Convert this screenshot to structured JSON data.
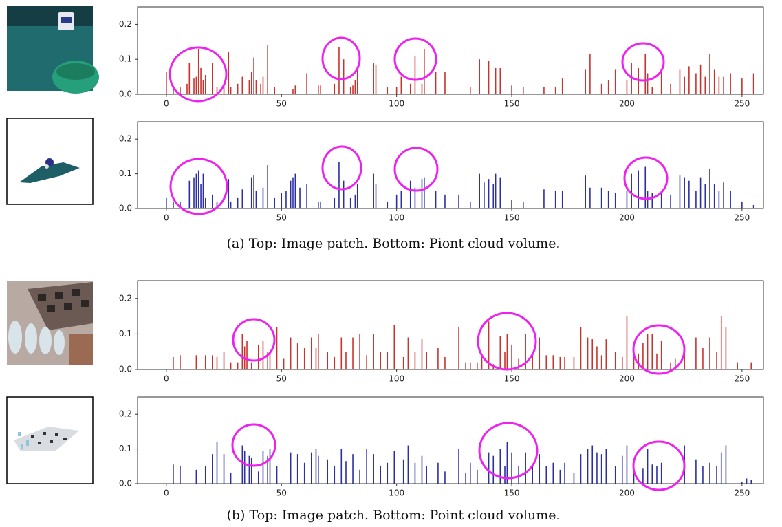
{
  "chart_data": [
    {
      "type": "bar",
      "color": "#c8332e",
      "xlim": [
        -12.5,
        259.3
      ],
      "ylim": [
        0,
        0.25
      ],
      "xticks": [
        0,
        50,
        100,
        150,
        200,
        250
      ],
      "yticks": [
        {
          "value": 0,
          "label": "0.0"
        },
        0.1,
        0.2
      ],
      "x": [
        0,
        3,
        6,
        9,
        10,
        12,
        13,
        14,
        15,
        16,
        17,
        20,
        22,
        25,
        27,
        28,
        31,
        33,
        36,
        37,
        38,
        39,
        41,
        42,
        44,
        47,
        55,
        56,
        61,
        66,
        67,
        73,
        75,
        77,
        80,
        81,
        82,
        83,
        90,
        91,
        96,
        100,
        102,
        106,
        108,
        111,
        112,
        117,
        121,
        132,
        136,
        140,
        143,
        145,
        150,
        155,
        164,
        169,
        172,
        182,
        184,
        189,
        192,
        195,
        200,
        202,
        205,
        208,
        209,
        211,
        215,
        219,
        223,
        225,
        227,
        230,
        232,
        234,
        236,
        238,
        240,
        242,
        245,
        250,
        255
      ],
      "values": [
        0.065,
        0.02,
        0.02,
        0.03,
        0.09,
        0.045,
        0.05,
        0.13,
        0.075,
        0.04,
        0.055,
        0.09,
        0.02,
        0.02,
        0.12,
        0.02,
        0.03,
        0.05,
        0.04,
        0.065,
        0.105,
        0.04,
        0.03,
        0.05,
        0.14,
        0.02,
        0.015,
        0.025,
        0.06,
        0.025,
        0.025,
        0.03,
        0.135,
        0.1,
        0.02,
        0.025,
        0.04,
        0.08,
        0.09,
        0.085,
        0.02,
        0.02,
        0.05,
        0.03,
        0.11,
        0.03,
        0.13,
        0.065,
        0.065,
        0.02,
        0.1,
        0.095,
        0.075,
        0.075,
        0.025,
        0.02,
        0.02,
        0.02,
        0.045,
        0.07,
        0.115,
        0.03,
        0.04,
        0.07,
        0.04,
        0.09,
        0.075,
        0.115,
        0.06,
        0.02,
        0.065,
        0.03,
        0.07,
        0.05,
        0.08,
        0.06,
        0.085,
        0.05,
        0.115,
        0.07,
        0.05,
        0.05,
        0.06,
        0.045,
        0.06
      ]
    },
    {
      "type": "bar",
      "color": "#2b2fa3",
      "xlim": [
        -12.5,
        259.3
      ],
      "ylim": [
        0,
        0.25
      ],
      "xticks": [
        0,
        50,
        100,
        150,
        200,
        250
      ],
      "yticks": [
        {
          "value": 0,
          "label": "0.0"
        },
        0.1,
        0.2
      ],
      "x": [
        0,
        3,
        6,
        10,
        12,
        13,
        14,
        15,
        16,
        17,
        20,
        22,
        27,
        28,
        31,
        33,
        37,
        38,
        39,
        42,
        44,
        47,
        50,
        52,
        54,
        55,
        56,
        58,
        61,
        66,
        67,
        73,
        75,
        77,
        80,
        82,
        83,
        90,
        91,
        96,
        100,
        102,
        106,
        108,
        111,
        112,
        117,
        121,
        127,
        132,
        136,
        138,
        140,
        142,
        143,
        145,
        150,
        155,
        164,
        169,
        172,
        182,
        184,
        189,
        192,
        195,
        200,
        202,
        205,
        208,
        209,
        211,
        215,
        219,
        223,
        225,
        227,
        230,
        232,
        234,
        236,
        238,
        240,
        242,
        245,
        250,
        255
      ],
      "values": [
        0.03,
        0.02,
        0.02,
        0.08,
        0.09,
        0.1,
        0.11,
        0.07,
        0.1,
        0.03,
        0.04,
        0.02,
        0.085,
        0.02,
        0.03,
        0.055,
        0.09,
        0.095,
        0.05,
        0.06,
        0.125,
        0.03,
        0.045,
        0.05,
        0.08,
        0.09,
        0.1,
        0.06,
        0.07,
        0.02,
        0.02,
        0.03,
        0.135,
        0.08,
        0.03,
        0.04,
        0.07,
        0.1,
        0.07,
        0.02,
        0.04,
        0.05,
        0.08,
        0.06,
        0.085,
        0.09,
        0.05,
        0.04,
        0.04,
        0.02,
        0.1,
        0.075,
        0.085,
        0.07,
        0.1,
        0.09,
        0.025,
        0.02,
        0.055,
        0.05,
        0.05,
        0.095,
        0.06,
        0.06,
        0.05,
        0.045,
        0.05,
        0.1,
        0.11,
        0.12,
        0.05,
        0.045,
        0.045,
        0.04,
        0.095,
        0.09,
        0.08,
        0.05,
        0.09,
        0.07,
        0.115,
        0.07,
        0.05,
        0.075,
        0.05,
        0.02,
        0.01
      ]
    },
    {
      "type": "bar",
      "color": "#c8332e",
      "xlim": [
        -12.5,
        259.3
      ],
      "ylim": [
        0,
        0.25
      ],
      "xticks": [
        0,
        50,
        100,
        150,
        200,
        250
      ],
      "yticks": [
        {
          "value": 0,
          "label": "0.0"
        },
        0.1,
        0.2
      ],
      "x": [
        3,
        6,
        13,
        17,
        20,
        22,
        25,
        28,
        31,
        33,
        34,
        35,
        37,
        40,
        42,
        44,
        45,
        48,
        51,
        54,
        57,
        60,
        63,
        65,
        66,
        70,
        73,
        76,
        78,
        81,
        84,
        87,
        90,
        93,
        96,
        99,
        103,
        105,
        108,
        111,
        113,
        118,
        121,
        127,
        130,
        132,
        135,
        137,
        140,
        142,
        145,
        147,
        148,
        150,
        153,
        156,
        159,
        162,
        165,
        168,
        171,
        173,
        177,
        180,
        183,
        185,
        187,
        189,
        191,
        195,
        198,
        200,
        203,
        205,
        207,
        209,
        211,
        213,
        215,
        219,
        221,
        225,
        230,
        233,
        236,
        239,
        241,
        243,
        248,
        254
      ],
      "values": [
        0.035,
        0.04,
        0.04,
        0.04,
        0.04,
        0.035,
        0.05,
        0.02,
        0.02,
        0.1,
        0.065,
        0.08,
        0.02,
        0.07,
        0.08,
        0.05,
        0.05,
        0.12,
        0.03,
        0.09,
        0.075,
        0.06,
        0.09,
        0.06,
        0.1,
        0.05,
        0.035,
        0.09,
        0.05,
        0.09,
        0.1,
        0.04,
        0.1,
        0.05,
        0.05,
        0.125,
        0.035,
        0.09,
        0.05,
        0.085,
        0.05,
        0.06,
        0.035,
        0.12,
        0.02,
        0.02,
        0.02,
        0.035,
        0.135,
        0.015,
        0.095,
        0.05,
        0.1,
        0.07,
        0.03,
        0.1,
        0.04,
        0.09,
        0.04,
        0.04,
        0.035,
        0.035,
        0.035,
        0.12,
        0.09,
        0.085,
        0.065,
        0.04,
        0.085,
        0.05,
        0.035,
        0.15,
        0.045,
        0.045,
        0.075,
        0.1,
        0.1,
        0.045,
        0.08,
        0.02,
        0.03,
        0.06,
        0.09,
        0.06,
        0.09,
        0.05,
        0.15,
        0.12,
        0.02,
        0.02
      ]
    },
    {
      "type": "bar",
      "color": "#2b2fa3",
      "xlim": [
        -12.5,
        259.3
      ],
      "ylim": [
        0,
        0.25
      ],
      "xticks": [
        0,
        50,
        100,
        150,
        200,
        250
      ],
      "yticks": [
        {
          "value": 0,
          "label": "0.0"
        },
        0.1,
        0.2
      ],
      "x": [
        3,
        6,
        13,
        17,
        20,
        22,
        25,
        28,
        33,
        34,
        36,
        37,
        40,
        42,
        44,
        45,
        48,
        54,
        57,
        60,
        63,
        65,
        66,
        70,
        73,
        76,
        78,
        81,
        84,
        87,
        90,
        93,
        96,
        99,
        103,
        105,
        108,
        111,
        113,
        118,
        121,
        127,
        130,
        132,
        135,
        140,
        142,
        145,
        147,
        148,
        150,
        153,
        156,
        159,
        162,
        165,
        168,
        171,
        173,
        177,
        180,
        183,
        185,
        187,
        189,
        191,
        195,
        198,
        200,
        203,
        207,
        209,
        211,
        213,
        215,
        225,
        230,
        233,
        236,
        239,
        241,
        243,
        250,
        252,
        254
      ],
      "values": [
        0.055,
        0.05,
        0.04,
        0.05,
        0.085,
        0.12,
        0.085,
        0.03,
        0.11,
        0.095,
        0.08,
        0.075,
        0.035,
        0.095,
        0.08,
        0.1,
        0.05,
        0.09,
        0.085,
        0.06,
        0.09,
        0.1,
        0.08,
        0.07,
        0.05,
        0.1,
        0.065,
        0.085,
        0.04,
        0.1,
        0.085,
        0.05,
        0.06,
        0.095,
        0.07,
        0.11,
        0.06,
        0.08,
        0.05,
        0.06,
        0.035,
        0.1,
        0.03,
        0.06,
        0.04,
        0.09,
        0.08,
        0.1,
        0.05,
        0.12,
        0.09,
        0.05,
        0.09,
        0.05,
        0.085,
        0.05,
        0.06,
        0.04,
        0.06,
        0.03,
        0.085,
        0.1,
        0.11,
        0.09,
        0.085,
        0.1,
        0.05,
        0.08,
        0.11,
        0.07,
        0.045,
        0.1,
        0.055,
        0.05,
        0.06,
        0.11,
        0.07,
        0.05,
        0.06,
        0.05,
        0.09,
        0.11,
        0.005,
        0.015,
        0.01
      ]
    }
  ],
  "captions": [
    "(a) Top: Image patch. Bottom: Piont cloud volume.",
    "(b) Top: Image patch. Bottom: Point cloud volume."
  ]
}
